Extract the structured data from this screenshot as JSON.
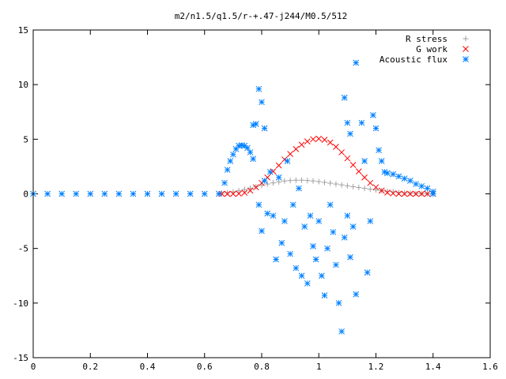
{
  "chart_data": {
    "type": "scatter",
    "title": "m2/n1.5/q1.5/r-+.47-j244/M0.5/512",
    "xlabel": "",
    "ylabel": "",
    "xlim": [
      0,
      1.6
    ],
    "ylim": [
      -15,
      15
    ],
    "xticks": [
      0,
      0.2,
      0.4,
      0.6,
      0.8,
      1,
      1.2,
      1.4,
      1.6
    ],
    "xtick_labels": [
      "0",
      "0.2",
      "0.4",
      "0.6",
      "0.8",
      "1",
      "1.2",
      "1.4",
      "1.6"
    ],
    "yticks": [
      -15,
      -10,
      -5,
      0,
      5,
      10,
      15
    ],
    "ytick_labels": [
      "-15",
      "-10",
      "-5",
      "0",
      "5",
      "10",
      "15"
    ],
    "grid": false,
    "legend_position": "top-right",
    "series": [
      {
        "name": "R stress",
        "marker": "plus",
        "color": "#a0a0a0",
        "points": [
          [
            0.66,
            0.05
          ],
          [
            0.68,
            0.1
          ],
          [
            0.7,
            0.18
          ],
          [
            0.72,
            0.28
          ],
          [
            0.74,
            0.4
          ],
          [
            0.76,
            0.52
          ],
          [
            0.78,
            0.65
          ],
          [
            0.8,
            0.78
          ],
          [
            0.82,
            0.9
          ],
          [
            0.84,
            1.0
          ],
          [
            0.86,
            1.1
          ],
          [
            0.88,
            1.18
          ],
          [
            0.9,
            1.22
          ],
          [
            0.92,
            1.25
          ],
          [
            0.94,
            1.25
          ],
          [
            0.96,
            1.22
          ],
          [
            0.98,
            1.18
          ],
          [
            1.0,
            1.12
          ],
          [
            1.02,
            1.05
          ],
          [
            1.04,
            0.98
          ],
          [
            1.06,
            0.9
          ],
          [
            1.08,
            0.82
          ],
          [
            1.1,
            0.74
          ],
          [
            1.12,
            0.66
          ],
          [
            1.14,
            0.58
          ],
          [
            1.16,
            0.5
          ],
          [
            1.18,
            0.43
          ],
          [
            1.2,
            0.36
          ],
          [
            1.22,
            0.29
          ],
          [
            1.24,
            0.23
          ],
          [
            1.26,
            0.18
          ],
          [
            1.28,
            0.13
          ],
          [
            1.3,
            0.09
          ],
          [
            1.32,
            0.06
          ],
          [
            1.34,
            0.04
          ],
          [
            1.36,
            0.02
          ],
          [
            1.38,
            0.01
          ],
          [
            1.4,
            0.0
          ]
        ]
      },
      {
        "name": "G work",
        "marker": "cross",
        "color": "#ff0000",
        "points": [
          [
            0.66,
            0.0
          ],
          [
            0.68,
            0.0
          ],
          [
            0.7,
            0.0
          ],
          [
            0.72,
            0.02
          ],
          [
            0.74,
            0.1
          ],
          [
            0.76,
            0.3
          ],
          [
            0.78,
            0.6
          ],
          [
            0.8,
            1.0
          ],
          [
            0.82,
            1.5
          ],
          [
            0.84,
            2.05
          ],
          [
            0.86,
            2.6
          ],
          [
            0.88,
            3.15
          ],
          [
            0.9,
            3.65
          ],
          [
            0.92,
            4.1
          ],
          [
            0.94,
            4.5
          ],
          [
            0.96,
            4.8
          ],
          [
            0.98,
            5.0
          ],
          [
            1.0,
            5.05
          ],
          [
            1.02,
            4.95
          ],
          [
            1.04,
            4.7
          ],
          [
            1.06,
            4.3
          ],
          [
            1.08,
            3.8
          ],
          [
            1.1,
            3.25
          ],
          [
            1.12,
            2.65
          ],
          [
            1.14,
            2.05
          ],
          [
            1.16,
            1.5
          ],
          [
            1.18,
            1.0
          ],
          [
            1.2,
            0.6
          ],
          [
            1.22,
            0.3
          ],
          [
            1.24,
            0.12
          ],
          [
            1.26,
            0.04
          ],
          [
            1.28,
            0.01
          ],
          [
            1.3,
            0.0
          ],
          [
            1.32,
            0.0
          ],
          [
            1.34,
            0.0
          ],
          [
            1.36,
            0.0
          ],
          [
            1.38,
            0.0
          ],
          [
            1.4,
            0.0
          ]
        ]
      },
      {
        "name": "Acoustic flux",
        "marker": "star",
        "color": "#0080ff",
        "points": [
          [
            0.0,
            0.0
          ],
          [
            0.05,
            0.0
          ],
          [
            0.1,
            0.0
          ],
          [
            0.15,
            0.0
          ],
          [
            0.2,
            0.0
          ],
          [
            0.25,
            0.0
          ],
          [
            0.3,
            0.0
          ],
          [
            0.35,
            0.0
          ],
          [
            0.4,
            0.0
          ],
          [
            0.45,
            0.0
          ],
          [
            0.5,
            0.0
          ],
          [
            0.55,
            0.0
          ],
          [
            0.6,
            0.0
          ],
          [
            0.65,
            0.0
          ],
          [
            0.67,
            1.0
          ],
          [
            0.68,
            2.2
          ],
          [
            0.69,
            3.0
          ],
          [
            0.7,
            3.6
          ],
          [
            0.71,
            4.1
          ],
          [
            0.72,
            4.4
          ],
          [
            0.73,
            4.45
          ],
          [
            0.74,
            4.4
          ],
          [
            0.75,
            4.2
          ],
          [
            0.76,
            3.8
          ],
          [
            0.77,
            3.2
          ],
          [
            0.79,
            9.6
          ],
          [
            0.8,
            8.4
          ],
          [
            0.81,
            6.0
          ],
          [
            0.78,
            6.4
          ],
          [
            0.77,
            6.3
          ],
          [
            0.79,
            -1.0
          ],
          [
            0.8,
            -3.4
          ],
          [
            0.81,
            1.2
          ],
          [
            0.82,
            -1.8
          ],
          [
            0.83,
            2.0
          ],
          [
            0.84,
            -2.0
          ],
          [
            0.85,
            -6.0
          ],
          [
            0.86,
            1.5
          ],
          [
            0.87,
            -4.5
          ],
          [
            0.88,
            -2.5
          ],
          [
            0.89,
            3.0
          ],
          [
            0.9,
            -5.5
          ],
          [
            0.91,
            -1.0
          ],
          [
            0.92,
            -6.8
          ],
          [
            0.93,
            0.5
          ],
          [
            0.94,
            -7.5
          ],
          [
            0.95,
            -3.0
          ],
          [
            0.96,
            -8.2
          ],
          [
            0.97,
            -2.0
          ],
          [
            0.98,
            -4.8
          ],
          [
            0.99,
            -6.0
          ],
          [
            1.0,
            -2.5
          ],
          [
            1.01,
            -7.5
          ],
          [
            1.02,
            -9.3
          ],
          [
            1.03,
            -5.0
          ],
          [
            1.04,
            -1.0
          ],
          [
            1.05,
            -3.5
          ],
          [
            1.06,
            -6.5
          ],
          [
            1.07,
            -10.0
          ],
          [
            1.08,
            -12.6
          ],
          [
            1.09,
            -4.0
          ],
          [
            1.1,
            -2.0
          ],
          [
            1.11,
            -5.8
          ],
          [
            1.12,
            -3.0
          ],
          [
            1.13,
            -9.2
          ],
          [
            1.13,
            12.0
          ],
          [
            1.1,
            6.5
          ],
          [
            1.09,
            8.8
          ],
          [
            1.11,
            5.5
          ],
          [
            1.15,
            6.5
          ],
          [
            1.16,
            3.0
          ],
          [
            1.17,
            -7.2
          ],
          [
            1.18,
            -2.5
          ],
          [
            1.19,
            7.2
          ],
          [
            1.2,
            6.0
          ],
          [
            1.21,
            4.0
          ],
          [
            1.22,
            3.0
          ],
          [
            1.23,
            2.0
          ],
          [
            1.24,
            1.9
          ],
          [
            1.26,
            1.8
          ],
          [
            1.28,
            1.6
          ],
          [
            1.3,
            1.4
          ],
          [
            1.32,
            1.2
          ],
          [
            1.34,
            0.9
          ],
          [
            1.36,
            0.7
          ],
          [
            1.38,
            0.5
          ],
          [
            1.4,
            0.2
          ],
          [
            1.4,
            0.0
          ]
        ]
      }
    ]
  }
}
